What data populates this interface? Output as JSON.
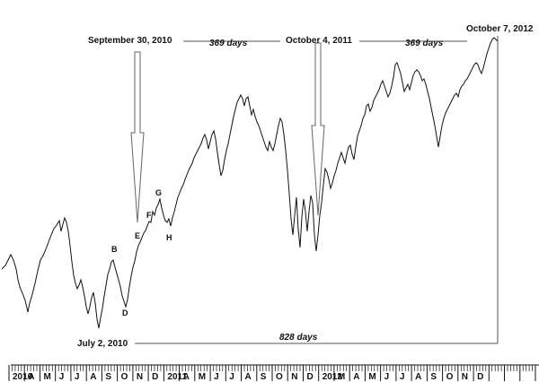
{
  "chart_data": {
    "type": "line",
    "series": [
      {
        "points": [
          [
            2,
            300
          ],
          [
            6,
            296
          ],
          [
            9,
            290
          ],
          [
            12,
            284
          ],
          [
            15,
            290
          ],
          [
            18,
            300
          ],
          [
            20,
            312
          ],
          [
            22,
            320
          ],
          [
            25,
            327
          ],
          [
            28,
            335
          ],
          [
            31,
            348
          ],
          [
            33,
            338
          ],
          [
            36,
            328
          ],
          [
            39,
            316
          ],
          [
            42,
            302
          ],
          [
            45,
            290
          ],
          [
            48,
            285
          ],
          [
            51,
            278
          ],
          [
            54,
            270
          ],
          [
            57,
            262
          ],
          [
            60,
            255
          ],
          [
            63,
            251
          ],
          [
            66,
            246
          ],
          [
            68,
            258
          ],
          [
            70,
            250
          ],
          [
            72,
            243
          ],
          [
            74,
            248
          ],
          [
            76,
            258
          ],
          [
            78,
            274
          ],
          [
            80,
            292
          ],
          [
            82,
            307
          ],
          [
            84,
            316
          ],
          [
            86,
            322
          ],
          [
            88,
            318
          ],
          [
            90,
            312
          ],
          [
            92,
            320
          ],
          [
            94,
            330
          ],
          [
            96,
            342
          ],
          [
            98,
            350
          ],
          [
            100,
            342
          ],
          [
            102,
            332
          ],
          [
            104,
            326
          ],
          [
            106,
            338
          ],
          [
            108,
            356
          ],
          [
            110,
            366
          ],
          [
            112,
            354
          ],
          [
            114,
            344
          ],
          [
            116,
            330
          ],
          [
            118,
            318
          ],
          [
            120,
            306
          ],
          [
            122,
            300
          ],
          [
            124,
            292
          ],
          [
            126,
            290
          ],
          [
            128,
            298
          ],
          [
            130,
            305
          ],
          [
            132,
            312
          ],
          [
            134,
            320
          ],
          [
            136,
            330
          ],
          [
            138,
            336
          ],
          [
            140,
            342
          ],
          [
            142,
            334
          ],
          [
            144,
            320
          ],
          [
            146,
            308
          ],
          [
            148,
            298
          ],
          [
            150,
            291
          ],
          [
            152,
            281
          ],
          [
            154,
            274
          ],
          [
            156,
            270
          ],
          [
            158,
            265
          ],
          [
            160,
            260
          ],
          [
            162,
            257
          ],
          [
            164,
            252
          ],
          [
            166,
            247
          ],
          [
            168,
            248
          ],
          [
            170,
            236
          ],
          [
            172,
            240
          ],
          [
            174,
            232
          ],
          [
            176,
            228
          ],
          [
            178,
            222
          ],
          [
            180,
            232
          ],
          [
            182,
            240
          ],
          [
            184,
            246
          ],
          [
            186,
            248
          ],
          [
            188,
            244
          ],
          [
            190,
            252
          ],
          [
            192,
            243
          ],
          [
            194,
            236
          ],
          [
            196,
            228
          ],
          [
            198,
            220
          ],
          [
            200,
            215
          ],
          [
            202,
            210
          ],
          [
            204,
            206
          ],
          [
            206,
            200
          ],
          [
            208,
            195
          ],
          [
            210,
            190
          ],
          [
            212,
            186
          ],
          [
            214,
            182
          ],
          [
            216,
            176
          ],
          [
            218,
            172
          ],
          [
            220,
            168
          ],
          [
            222,
            164
          ],
          [
            224,
            160
          ],
          [
            226,
            154
          ],
          [
            228,
            150
          ],
          [
            230,
            156
          ],
          [
            232,
            166
          ],
          [
            234,
            158
          ],
          [
            236,
            150
          ],
          [
            238,
            146
          ],
          [
            240,
            155
          ],
          [
            242,
            170
          ],
          [
            244,
            184
          ],
          [
            246,
            196
          ],
          [
            248,
            190
          ],
          [
            250,
            178
          ],
          [
            252,
            168
          ],
          [
            254,
            160
          ],
          [
            256,
            150
          ],
          [
            258,
            140
          ],
          [
            260,
            130
          ],
          [
            262,
            122
          ],
          [
            264,
            114
          ],
          [
            266,
            110
          ],
          [
            268,
            106
          ],
          [
            270,
            110
          ],
          [
            272,
            118
          ],
          [
            274,
            110
          ],
          [
            276,
            108
          ],
          [
            278,
            118
          ],
          [
            280,
            128
          ],
          [
            282,
            122
          ],
          [
            284,
            130
          ],
          [
            286,
            136
          ],
          [
            288,
            140
          ],
          [
            290,
            146
          ],
          [
            292,
            152
          ],
          [
            294,
            158
          ],
          [
            296,
            164
          ],
          [
            298,
            168
          ],
          [
            300,
            158
          ],
          [
            302,
            164
          ],
          [
            304,
            168
          ],
          [
            306,
            160
          ],
          [
            308,
            150
          ],
          [
            310,
            140
          ],
          [
            312,
            132
          ],
          [
            314,
            136
          ],
          [
            316,
            150
          ],
          [
            318,
            168
          ],
          [
            320,
            190
          ],
          [
            322,
            216
          ],
          [
            324,
            244
          ],
          [
            326,
            262
          ],
          [
            328,
            240
          ],
          [
            330,
            220
          ],
          [
            332,
            256
          ],
          [
            334,
            276
          ],
          [
            336,
            242
          ],
          [
            338,
            222
          ],
          [
            340,
            236
          ],
          [
            342,
            258
          ],
          [
            344,
            236
          ],
          [
            346,
            218
          ],
          [
            348,
            226
          ],
          [
            350,
            262
          ],
          [
            352,
            280
          ],
          [
            354,
            262
          ],
          [
            356,
            240
          ],
          [
            358,
            226
          ],
          [
            360,
            206
          ],
          [
            362,
            188
          ],
          [
            364,
            192
          ],
          [
            366,
            200
          ],
          [
            368,
            210
          ],
          [
            370,
            204
          ],
          [
            372,
            196
          ],
          [
            374,
            190
          ],
          [
            376,
            182
          ],
          [
            378,
            176
          ],
          [
            380,
            170
          ],
          [
            382,
            176
          ],
          [
            384,
            182
          ],
          [
            386,
            172
          ],
          [
            388,
            164
          ],
          [
            390,
            162
          ],
          [
            392,
            172
          ],
          [
            394,
            178
          ],
          [
            396,
            164
          ],
          [
            398,
            152
          ],
          [
            400,
            146
          ],
          [
            402,
            140
          ],
          [
            404,
            132
          ],
          [
            406,
            128
          ],
          [
            408,
            118
          ],
          [
            410,
            116
          ],
          [
            412,
            124
          ],
          [
            414,
            120
          ],
          [
            416,
            112
          ],
          [
            418,
            108
          ],
          [
            420,
            104
          ],
          [
            422,
            100
          ],
          [
            424,
            94
          ],
          [
            426,
            90
          ],
          [
            428,
            96
          ],
          [
            430,
            102
          ],
          [
            432,
            108
          ],
          [
            434,
            104
          ],
          [
            436,
            96
          ],
          [
            438,
            86
          ],
          [
            440,
            72
          ],
          [
            442,
            70
          ],
          [
            444,
            76
          ],
          [
            446,
            82
          ],
          [
            448,
            92
          ],
          [
            450,
            102
          ],
          [
            452,
            98
          ],
          [
            454,
            94
          ],
          [
            456,
            100
          ],
          [
            458,
            92
          ],
          [
            460,
            84
          ],
          [
            462,
            80
          ],
          [
            464,
            78
          ],
          [
            466,
            80
          ],
          [
            468,
            84
          ],
          [
            470,
            90
          ],
          [
            472,
            88
          ],
          [
            474,
            94
          ],
          [
            476,
            102
          ],
          [
            478,
            110
          ],
          [
            480,
            120
          ],
          [
            482,
            130
          ],
          [
            484,
            140
          ],
          [
            486,
            152
          ],
          [
            488,
            164
          ],
          [
            490,
            152
          ],
          [
            492,
            140
          ],
          [
            494,
            132
          ],
          [
            496,
            126
          ],
          [
            498,
            122
          ],
          [
            500,
            118
          ],
          [
            502,
            114
          ],
          [
            504,
            110
          ],
          [
            506,
            106
          ],
          [
            508,
            104
          ],
          [
            510,
            108
          ],
          [
            512,
            100
          ],
          [
            514,
            96
          ],
          [
            516,
            94
          ],
          [
            518,
            90
          ],
          [
            520,
            88
          ],
          [
            522,
            84
          ],
          [
            524,
            80
          ],
          [
            526,
            76
          ],
          [
            528,
            72
          ],
          [
            530,
            70
          ],
          [
            532,
            72
          ],
          [
            534,
            78
          ],
          [
            536,
            82
          ],
          [
            538,
            76
          ],
          [
            540,
            68
          ],
          [
            542,
            60
          ],
          [
            544,
            54
          ],
          [
            546,
            48
          ],
          [
            548,
            44
          ],
          [
            550,
            42
          ],
          [
            552,
            44
          ],
          [
            554,
            46
          ]
        ]
      }
    ],
    "xlim": [
      0,
      600
    ],
    "ylim": [
      0,
      426
    ],
    "x_tick_labels": [
      "2010",
      "A",
      "M",
      "J",
      "J",
      "A",
      "S",
      "O",
      "N",
      "D",
      "2011",
      "A",
      "M",
      "J",
      "J",
      "A",
      "S",
      "O",
      "N",
      "D",
      "2012",
      "M",
      "A",
      "M",
      "J",
      "J",
      "A",
      "S",
      "O",
      "N",
      "D"
    ],
    "annotations": {
      "dates": [
        {
          "id": "d1",
          "text": "September 30, 2010"
        },
        {
          "id": "d2",
          "text": "October 4, 2011"
        },
        {
          "id": "d3",
          "text": "October 7, 2012"
        },
        {
          "id": "d4",
          "text": "July 2, 2010"
        }
      ],
      "spans": [
        {
          "id": "s1",
          "text": "369 days"
        },
        {
          "id": "s2",
          "text": "369 days"
        },
        {
          "id": "s3",
          "text": "828 days"
        }
      ],
      "wave_labels": [
        "B",
        "D",
        "E",
        "F",
        "G",
        "H"
      ]
    }
  }
}
